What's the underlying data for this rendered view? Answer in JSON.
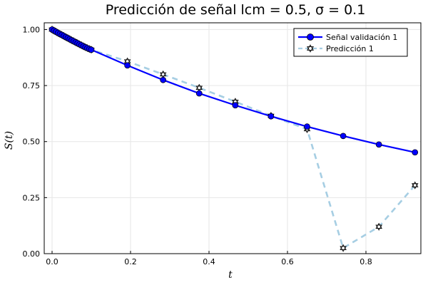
{
  "chart_data": {
    "type": "line",
    "title": "Predicción de señal lcm = 0.5, σ = 0.1",
    "xlabel": "t",
    "ylabel": "S(t)",
    "xlim": [
      -0.02,
      0.94
    ],
    "ylim": [
      0.0,
      1.03
    ],
    "xticks": [
      0.0,
      0.2,
      0.4,
      0.6,
      0.8
    ],
    "xtick_labels": [
      "0.0",
      "0.2",
      "0.4",
      "0.6",
      "0.8"
    ],
    "yticks": [
      0.0,
      0.25,
      0.5,
      0.75,
      1.0
    ],
    "ytick_labels": [
      "0.00",
      "0.25",
      "0.50",
      "0.75",
      "1.00"
    ],
    "grid": true,
    "legend_position": "top-right",
    "series": [
      {
        "name": "Señal validación 1",
        "color": "#0000ff",
        "line_style": "solid",
        "marker": "circle",
        "x": [
          0.0,
          0.005,
          0.01,
          0.015,
          0.02,
          0.025,
          0.03,
          0.035,
          0.04,
          0.045,
          0.05,
          0.055,
          0.06,
          0.065,
          0.07,
          0.075,
          0.08,
          0.085,
          0.09,
          0.095,
          0.1,
          0.192,
          0.283,
          0.375,
          0.467,
          0.558,
          0.65,
          0.742,
          0.833,
          0.925
        ],
        "y": [
          1.0,
          0.995,
          0.99,
          0.985,
          0.98,
          0.976,
          0.971,
          0.966,
          0.962,
          0.957,
          0.952,
          0.948,
          0.943,
          0.939,
          0.934,
          0.93,
          0.925,
          0.921,
          0.917,
          0.913,
          0.91,
          0.84,
          0.775,
          0.715,
          0.662,
          0.613,
          0.567,
          0.525,
          0.487,
          0.452
        ]
      },
      {
        "name": "Predicción 1",
        "color": "#a6cee3",
        "line_style": "dashed",
        "marker": "star",
        "x": [
          0.0,
          0.005,
          0.01,
          0.015,
          0.02,
          0.025,
          0.03,
          0.035,
          0.04,
          0.045,
          0.05,
          0.055,
          0.06,
          0.065,
          0.07,
          0.075,
          0.08,
          0.085,
          0.09,
          0.095,
          0.1,
          0.192,
          0.283,
          0.375,
          0.467,
          0.558,
          0.65,
          0.742,
          0.833,
          0.925
        ],
        "y": [
          1.0,
          0.995,
          0.99,
          0.985,
          0.98,
          0.976,
          0.971,
          0.966,
          0.962,
          0.957,
          0.952,
          0.948,
          0.943,
          0.939,
          0.934,
          0.93,
          0.925,
          0.921,
          0.917,
          0.913,
          0.91,
          0.858,
          0.8,
          0.74,
          0.678,
          0.615,
          0.555,
          0.025,
          0.12,
          0.305
        ]
      }
    ]
  }
}
